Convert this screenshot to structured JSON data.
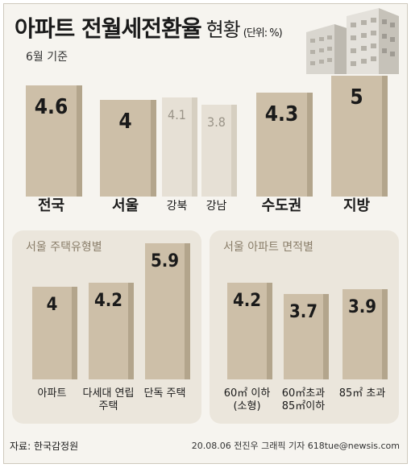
{
  "title": "아파트 전월세전환율",
  "title_sub": "현황",
  "unit": "(단위: %)",
  "subtitle": "6월 기준",
  "colors": {
    "bar": "#cdbfa8",
    "bar_side": "#b3a58c",
    "bar_light": "#e6e0d5",
    "bar_light_side": "#d6cfc1",
    "panel": "#ebe6dc"
  },
  "chart_data": [
    {
      "type": "bar",
      "title": "",
      "categories": [
        "전국",
        "서울",
        "강북",
        "강남",
        "수도권",
        "지방"
      ],
      "values": [
        4.6,
        4,
        4.1,
        3.8,
        4.3,
        5
      ],
      "value_labels": [
        "4.6",
        "4",
        "4.1",
        "3.8",
        "4.3",
        "5"
      ]
    },
    {
      "type": "bar",
      "title": "서울 주택유형별",
      "categories": [
        "아파트",
        "다세대 연립주택",
        "단독 주택"
      ],
      "values": [
        4,
        4.2,
        5.9
      ],
      "value_labels": [
        "4",
        "4.2",
        "5.9"
      ]
    },
    {
      "type": "bar",
      "title": "서울 아파트 면적별",
      "categories": [
        "60㎡ 이하 (소형)",
        "60㎡초과 85㎡이하",
        "85㎡ 초과"
      ],
      "values": [
        4.2,
        3.7,
        3.9
      ],
      "value_labels": [
        "4.2",
        "3.7",
        "3.9"
      ]
    }
  ],
  "footer": {
    "source": "자료: 한국감정원",
    "credit": "20.08.06 전진우 그래픽 기자 618tue@newsis.com"
  }
}
